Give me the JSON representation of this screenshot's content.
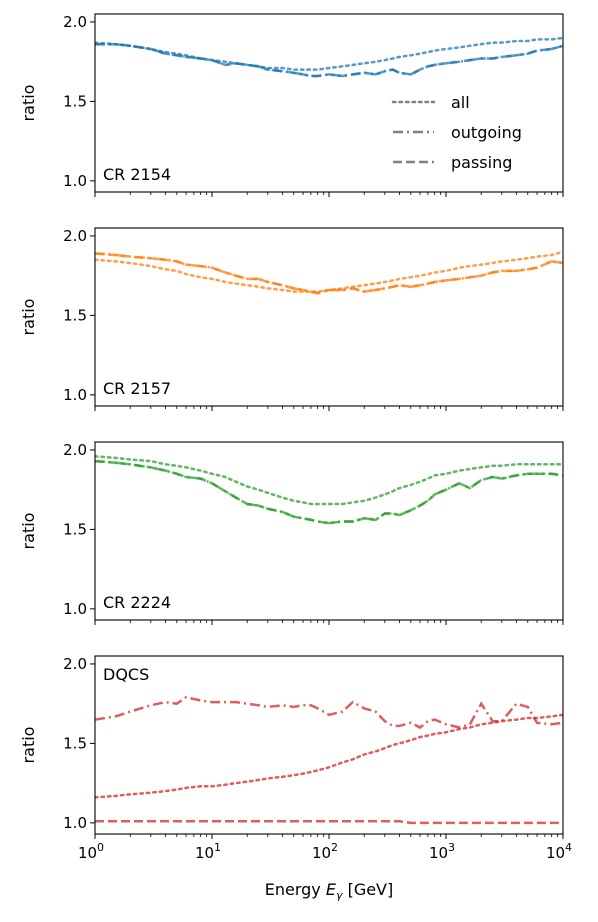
{
  "figure": {
    "xlabel_text": "Energy ",
    "xlabel_symbol": "E",
    "xlabel_subscript": "γ",
    "xlabel_unit": " [GeV]",
    "legend": [
      {
        "label": "all",
        "style": "dotted"
      },
      {
        "label": "outgoing",
        "style": "dashdot"
      },
      {
        "label": "passing",
        "style": "dashed"
      }
    ],
    "legend_color": "#7f7f7f"
  },
  "chart_data": [
    {
      "type": "line",
      "panel_label": "CR 2154",
      "color": "#1f77b4",
      "ylabel": "ratio",
      "xscale": "log",
      "xlim": [
        1,
        10000
      ],
      "ylim": [
        0.93,
        2.05
      ],
      "yticks": [
        "1.0",
        "1.5",
        "2.0"
      ],
      "xticks": [],
      "x": [
        1,
        1.5,
        2,
        3,
        4,
        5,
        6,
        8,
        10,
        13,
        16,
        20,
        25,
        30,
        40,
        50,
        60,
        70,
        80,
        100,
        130,
        160,
        200,
        250,
        300,
        350,
        400,
        500,
        600,
        700,
        800,
        1000,
        1300,
        1600,
        2000,
        2500,
        3000,
        4000,
        5000,
        6000,
        8000,
        10000
      ],
      "series": [
        {
          "name": "all",
          "style": "dotted",
          "values": [
            1.87,
            1.86,
            1.85,
            1.83,
            1.81,
            1.8,
            1.79,
            1.77,
            1.76,
            1.75,
            1.74,
            1.73,
            1.72,
            1.71,
            1.71,
            1.7,
            1.7,
            1.7,
            1.7,
            1.71,
            1.72,
            1.73,
            1.74,
            1.75,
            1.76,
            1.77,
            1.78,
            1.79,
            1.8,
            1.81,
            1.82,
            1.83,
            1.84,
            1.85,
            1.86,
            1.87,
            1.87,
            1.88,
            1.88,
            1.89,
            1.89,
            1.9
          ]
        },
        {
          "name": "outgoing",
          "style": "dashdot",
          "values": [
            1.86,
            1.86,
            1.85,
            1.83,
            1.8,
            1.79,
            1.78,
            1.77,
            1.76,
            1.73,
            1.74,
            1.73,
            1.72,
            1.7,
            1.69,
            1.68,
            1.67,
            1.66,
            1.66,
            1.67,
            1.66,
            1.67,
            1.68,
            1.67,
            1.69,
            1.7,
            1.68,
            1.67,
            1.7,
            1.72,
            1.73,
            1.74,
            1.75,
            1.76,
            1.77,
            1.77,
            1.78,
            1.79,
            1.8,
            1.82,
            1.83,
            1.85
          ]
        },
        {
          "name": "passing",
          "style": "dashed",
          "values": [
            1.86,
            1.86,
            1.85,
            1.83,
            1.8,
            1.79,
            1.78,
            1.77,
            1.76,
            1.73,
            1.74,
            1.73,
            1.72,
            1.7,
            1.69,
            1.68,
            1.67,
            1.66,
            1.66,
            1.67,
            1.66,
            1.67,
            1.68,
            1.67,
            1.69,
            1.7,
            1.68,
            1.67,
            1.7,
            1.72,
            1.73,
            1.74,
            1.75,
            1.76,
            1.77,
            1.77,
            1.78,
            1.79,
            1.8,
            1.82,
            1.83,
            1.85
          ]
        }
      ]
    },
    {
      "type": "line",
      "panel_label": "CR 2157",
      "color": "#ff7f0e",
      "ylabel": "ratio",
      "xscale": "log",
      "xlim": [
        1,
        10000
      ],
      "ylim": [
        0.93,
        2.05
      ],
      "yticks": [
        "1.0",
        "1.5",
        "2.0"
      ],
      "xticks": [],
      "x": [
        1,
        1.5,
        2,
        3,
        4,
        5,
        6,
        8,
        10,
        13,
        16,
        20,
        25,
        30,
        40,
        50,
        60,
        70,
        80,
        100,
        130,
        160,
        200,
        250,
        300,
        350,
        400,
        500,
        600,
        700,
        800,
        1000,
        1300,
        1600,
        2000,
        2500,
        3000,
        4000,
        5000,
        6000,
        8000,
        10000
      ],
      "series": [
        {
          "name": "all",
          "style": "dotted",
          "values": [
            1.85,
            1.84,
            1.83,
            1.81,
            1.79,
            1.78,
            1.76,
            1.74,
            1.73,
            1.71,
            1.7,
            1.69,
            1.68,
            1.67,
            1.66,
            1.65,
            1.65,
            1.65,
            1.65,
            1.66,
            1.67,
            1.68,
            1.69,
            1.7,
            1.71,
            1.72,
            1.73,
            1.74,
            1.75,
            1.76,
            1.77,
            1.78,
            1.8,
            1.81,
            1.82,
            1.83,
            1.84,
            1.85,
            1.86,
            1.87,
            1.88,
            1.9
          ]
        },
        {
          "name": "outgoing",
          "style": "dashdot",
          "values": [
            1.89,
            1.88,
            1.87,
            1.86,
            1.85,
            1.84,
            1.82,
            1.81,
            1.8,
            1.77,
            1.75,
            1.73,
            1.73,
            1.71,
            1.69,
            1.67,
            1.66,
            1.65,
            1.64,
            1.66,
            1.66,
            1.67,
            1.65,
            1.66,
            1.67,
            1.68,
            1.69,
            1.68,
            1.69,
            1.7,
            1.71,
            1.72,
            1.73,
            1.74,
            1.75,
            1.77,
            1.78,
            1.78,
            1.79,
            1.8,
            1.84,
            1.83
          ]
        },
        {
          "name": "passing",
          "style": "dashed",
          "values": [
            1.89,
            1.88,
            1.87,
            1.86,
            1.85,
            1.84,
            1.82,
            1.81,
            1.8,
            1.77,
            1.75,
            1.73,
            1.73,
            1.71,
            1.69,
            1.67,
            1.66,
            1.65,
            1.64,
            1.66,
            1.66,
            1.67,
            1.65,
            1.66,
            1.67,
            1.68,
            1.69,
            1.68,
            1.69,
            1.7,
            1.71,
            1.72,
            1.73,
            1.74,
            1.75,
            1.77,
            1.78,
            1.78,
            1.79,
            1.8,
            1.84,
            1.83
          ]
        }
      ]
    },
    {
      "type": "line",
      "panel_label": "CR 2224",
      "color": "#2ca02c",
      "ylabel": "ratio",
      "xscale": "log",
      "xlim": [
        1,
        10000
      ],
      "ylim": [
        0.93,
        2.05
      ],
      "yticks": [
        "1.0",
        "1.5",
        "2.0"
      ],
      "xticks": [],
      "x": [
        1,
        1.5,
        2,
        3,
        4,
        5,
        6,
        8,
        10,
        13,
        16,
        20,
        25,
        30,
        40,
        50,
        60,
        70,
        80,
        100,
        130,
        160,
        200,
        250,
        300,
        350,
        400,
        500,
        600,
        700,
        800,
        1000,
        1300,
        1600,
        2000,
        2500,
        3000,
        4000,
        5000,
        6000,
        8000,
        10000
      ],
      "series": [
        {
          "name": "all",
          "style": "dotted",
          "values": [
            1.96,
            1.95,
            1.94,
            1.93,
            1.91,
            1.9,
            1.89,
            1.87,
            1.85,
            1.83,
            1.8,
            1.77,
            1.75,
            1.73,
            1.7,
            1.68,
            1.67,
            1.66,
            1.66,
            1.66,
            1.66,
            1.67,
            1.68,
            1.7,
            1.72,
            1.74,
            1.76,
            1.78,
            1.8,
            1.82,
            1.84,
            1.85,
            1.87,
            1.88,
            1.89,
            1.9,
            1.9,
            1.91,
            1.91,
            1.91,
            1.91,
            1.91
          ]
        },
        {
          "name": "outgoing",
          "style": "dashdot",
          "values": [
            1.93,
            1.92,
            1.91,
            1.89,
            1.87,
            1.85,
            1.83,
            1.82,
            1.79,
            1.74,
            1.7,
            1.66,
            1.65,
            1.63,
            1.61,
            1.58,
            1.57,
            1.56,
            1.55,
            1.54,
            1.55,
            1.55,
            1.57,
            1.56,
            1.6,
            1.6,
            1.59,
            1.62,
            1.65,
            1.68,
            1.72,
            1.75,
            1.79,
            1.76,
            1.81,
            1.83,
            1.82,
            1.84,
            1.85,
            1.85,
            1.85,
            1.84
          ]
        },
        {
          "name": "passing",
          "style": "dashed",
          "values": [
            1.93,
            1.92,
            1.91,
            1.89,
            1.87,
            1.85,
            1.83,
            1.82,
            1.79,
            1.74,
            1.7,
            1.66,
            1.65,
            1.63,
            1.61,
            1.58,
            1.57,
            1.56,
            1.55,
            1.54,
            1.55,
            1.55,
            1.57,
            1.56,
            1.6,
            1.6,
            1.59,
            1.62,
            1.65,
            1.68,
            1.72,
            1.75,
            1.79,
            1.76,
            1.81,
            1.83,
            1.82,
            1.84,
            1.85,
            1.85,
            1.85,
            1.84
          ]
        }
      ]
    },
    {
      "type": "line",
      "panel_label": "DQCS",
      "color": "#d62728",
      "ylabel": "ratio",
      "xscale": "log",
      "xlim": [
        1,
        10000
      ],
      "ylim": [
        0.93,
        2.05
      ],
      "yticks": [
        "1.0",
        "1.5",
        "2.0"
      ],
      "xticks": [
        "10^0",
        "10^1",
        "10^2",
        "10^3",
        "10^4"
      ],
      "x": [
        1,
        1.5,
        2,
        3,
        4,
        5,
        6,
        8,
        10,
        13,
        16,
        20,
        25,
        30,
        40,
        50,
        60,
        70,
        80,
        100,
        130,
        160,
        200,
        250,
        300,
        350,
        400,
        500,
        600,
        700,
        800,
        1000,
        1300,
        1600,
        2000,
        2500,
        3000,
        4000,
        5000,
        6000,
        8000,
        10000
      ],
      "series": [
        {
          "name": "all",
          "style": "dotted",
          "values": [
            1.16,
            1.17,
            1.18,
            1.19,
            1.2,
            1.21,
            1.22,
            1.23,
            1.23,
            1.24,
            1.25,
            1.26,
            1.27,
            1.28,
            1.29,
            1.3,
            1.31,
            1.32,
            1.33,
            1.35,
            1.38,
            1.4,
            1.43,
            1.45,
            1.47,
            1.49,
            1.5,
            1.52,
            1.54,
            1.55,
            1.56,
            1.57,
            1.59,
            1.6,
            1.62,
            1.63,
            1.64,
            1.65,
            1.66,
            1.66,
            1.67,
            1.68
          ]
        },
        {
          "name": "outgoing",
          "style": "dashdot",
          "values": [
            1.65,
            1.67,
            1.7,
            1.74,
            1.76,
            1.75,
            1.79,
            1.77,
            1.76,
            1.76,
            1.76,
            1.75,
            1.74,
            1.73,
            1.74,
            1.73,
            1.74,
            1.74,
            1.72,
            1.68,
            1.7,
            1.76,
            1.72,
            1.7,
            1.64,
            1.61,
            1.61,
            1.63,
            1.6,
            1.64,
            1.65,
            1.62,
            1.6,
            1.62,
            1.75,
            1.64,
            1.64,
            1.75,
            1.73,
            1.63,
            1.62,
            1.63
          ]
        },
        {
          "name": "passing",
          "style": "dashed",
          "values": [
            1.01,
            1.01,
            1.01,
            1.01,
            1.01,
            1.01,
            1.01,
            1.01,
            1.01,
            1.01,
            1.01,
            1.01,
            1.01,
            1.01,
            1.01,
            1.01,
            1.01,
            1.01,
            1.01,
            1.01,
            1.01,
            1.01,
            1.01,
            1.01,
            1.01,
            1.01,
            1.01,
            1.0,
            1.0,
            1.0,
            1.0,
            1.0,
            1.0,
            1.0,
            1.0,
            1.0,
            1.0,
            1.0,
            1.0,
            1.0,
            1.0,
            1.0
          ]
        }
      ]
    }
  ]
}
